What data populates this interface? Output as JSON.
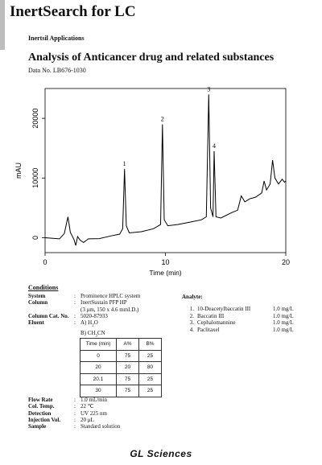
{
  "header": {
    "title": "InertSearch for LC",
    "subtitle": "Inertsil Applications"
  },
  "analysis": {
    "title": "Analysis of Anticancer drug and related substances",
    "data_no": "Data No. LB676-1030"
  },
  "chart_data": {
    "type": "line",
    "xlabel": "Time (min)",
    "ylabel": "mAU",
    "xlim": [
      0,
      20
    ],
    "ylim": [
      -2500,
      25000
    ],
    "x_ticks": [
      0,
      10,
      20
    ],
    "y_ticks": [
      0,
      10000,
      20000
    ],
    "grid": false,
    "series": [
      {
        "values": [
          [
            0,
            0
          ],
          [
            1.2,
            -200
          ],
          [
            1.6,
            700
          ],
          [
            1.9,
            3500
          ],
          [
            2.1,
            900
          ],
          [
            2.4,
            -300
          ],
          [
            2.55,
            -1300
          ],
          [
            2.7,
            200
          ],
          [
            2.9,
            -400
          ],
          [
            3.2,
            -800
          ],
          [
            3.6,
            -200
          ],
          [
            4.5,
            -150
          ],
          [
            5.5,
            300
          ],
          [
            6.2,
            600
          ],
          [
            6.45,
            1500
          ],
          [
            6.6,
            11500
          ],
          [
            6.75,
            2000
          ],
          [
            7,
            800
          ],
          [
            8,
            1000
          ],
          [
            9,
            1500
          ],
          [
            9.6,
            2200
          ],
          [
            9.75,
            19000
          ],
          [
            9.9,
            3000
          ],
          [
            10.2,
            2000
          ],
          [
            11,
            2200
          ],
          [
            12,
            2600
          ],
          [
            13,
            3000
          ],
          [
            13.4,
            3500
          ],
          [
            13.6,
            24000
          ],
          [
            13.75,
            5000
          ],
          [
            13.95,
            3500
          ],
          [
            14.05,
            14500
          ],
          [
            14.2,
            3500
          ],
          [
            14.6,
            3300
          ],
          [
            15,
            3700
          ],
          [
            15.5,
            4200
          ],
          [
            16,
            4600
          ],
          [
            16.3,
            7000
          ],
          [
            16.6,
            6000
          ],
          [
            17,
            6500
          ],
          [
            17.5,
            6800
          ],
          [
            18,
            7500
          ],
          [
            18.2,
            9500
          ],
          [
            18.4,
            8000
          ],
          [
            18.7,
            9000
          ],
          [
            18.9,
            13000
          ],
          [
            19.1,
            10000
          ],
          [
            19.4,
            9000
          ],
          [
            19.7,
            9800
          ],
          [
            19.9,
            9300
          ],
          [
            20,
            9500
          ]
        ]
      }
    ],
    "annotations": [
      {
        "label": "1",
        "x": 6.6,
        "y": 11500
      },
      {
        "label": "2",
        "x": 9.75,
        "y": 19000
      },
      {
        "label": "3",
        "x": 13.6,
        "y": 24000
      },
      {
        "label": "4",
        "x": 14.05,
        "y": 14500
      }
    ]
  },
  "conditions": {
    "heading": "Conditions",
    "system_label": "System",
    "system_value": "Prominence HPLC system",
    "column_label": "Column",
    "column_value": "InertSustain PFP HP",
    "column_dims": "(3 μm, 150 x 4.6 mmI.D.)",
    "catno_label": "Column Cat. No.",
    "catno_value": "5020-87933",
    "eluent_label": "Eluent",
    "eluent_a": "A) H",
    "eluent_a_sub": "2",
    "eluent_a_end": "O",
    "eluent_b": "B) CH",
    "eluent_b_sub": "3",
    "eluent_b_end": "CN",
    "colon": ":"
  },
  "gradient": {
    "headers": [
      "Time (min)",
      "A%",
      "B%"
    ],
    "rows": [
      [
        "0",
        "75",
        "25"
      ],
      [
        "20",
        "20",
        "80"
      ],
      [
        "20.1",
        "75",
        "25"
      ],
      [
        "30",
        "75",
        "25"
      ]
    ]
  },
  "conditions2": {
    "flow_label": "Flow Rate",
    "flow_value": "1.0 mL/min",
    "temp_label": "Col. Temp.",
    "temp_value": "22 ℃",
    "detect_label": "Detection",
    "detect_value": "UV 225 nm",
    "inj_label": "Injection Vol.",
    "inj_value": "20 μL",
    "sample_label": "Sample",
    "sample_value": "Standard solution"
  },
  "analyte": {
    "heading": "Analyte:",
    "items": [
      {
        "num": "1.",
        "name": "10-Deacetylbaccatin III",
        "conc": "1.0 mg/L"
      },
      {
        "num": "2.",
        "name": "Baccatin III",
        "conc": "1.0 mg/L"
      },
      {
        "num": "3.",
        "name": "Cephalomannine",
        "conc": "1.0 mg/L"
      },
      {
        "num": "4.",
        "name": "Paclitaxel",
        "conc": "1.0 mg/L"
      }
    ]
  },
  "footer": {
    "logo": "GL Sciences"
  }
}
